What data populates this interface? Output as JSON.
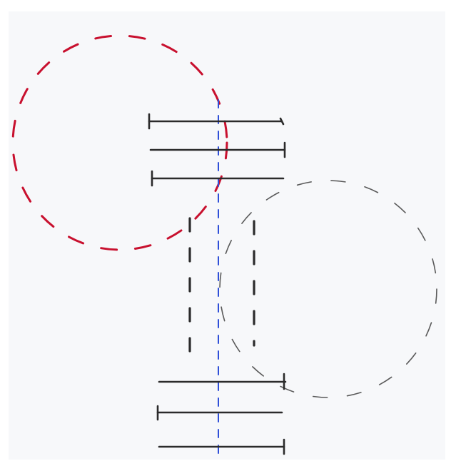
{
  "drawing": {
    "description_free": true,
    "colors": {
      "paper": "#f7f8fa",
      "red_circle": "#c8102e",
      "gray_circle": "#5a5a5a",
      "axis": "#2f4fd8",
      "ink": "#2b2b2b"
    },
    "elements": [
      "red-dashed-circle",
      "gray-dashed-circle",
      "blue-dashed-axis",
      "top-bar-1",
      "top-bar-2",
      "top-bar-3",
      "left-dashed-column",
      "right-dashed-column",
      "bottom-bar-1",
      "bottom-bar-2",
      "bottom-bar-3"
    ]
  }
}
